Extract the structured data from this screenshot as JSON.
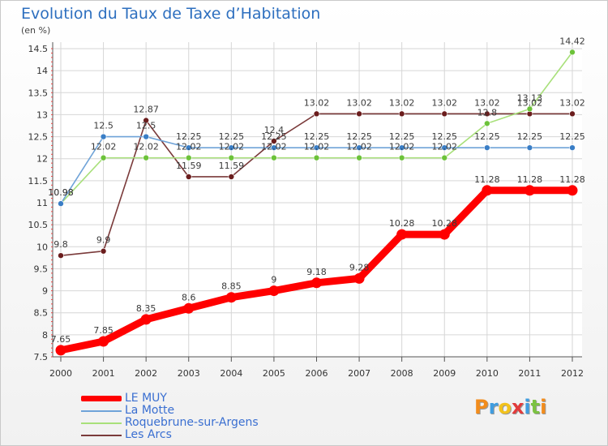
{
  "title": "Evolution du Taux de Taxe d’Habitation",
  "unit_label": "(en %)",
  "logo": {
    "text": [
      "P",
      "r",
      "o",
      "x",
      "i",
      "t",
      "i"
    ],
    "colors": [
      "#f28c1c",
      "#3f9de0",
      "#f2c21c",
      "#e23b3b",
      "#3f9de0",
      "#7cc242",
      "#f28c1c"
    ]
  },
  "chart_data": {
    "type": "line",
    "x": [
      2000,
      2001,
      2002,
      2003,
      2004,
      2005,
      2006,
      2007,
      2008,
      2009,
      2010,
      2011,
      2012
    ],
    "x_tick_labels": [
      "2000",
      "2001",
      "2002",
      "2003",
      "2004",
      "2005",
      "2006",
      "2007",
      "2008",
      "2009",
      "2010",
      "2011",
      "2012"
    ],
    "ylim": [
      7.5,
      14.5
    ],
    "y_ticks": [
      7.5,
      8,
      8.5,
      9,
      9.5,
      10,
      10.5,
      11,
      11.5,
      12,
      12.5,
      13,
      13.5,
      14,
      14.5
    ],
    "y_tick_labels": [
      "7.5",
      "8",
      "8.5",
      "9",
      "9.5",
      "10",
      "10.5",
      "11",
      "11.5",
      "12",
      "12.5",
      "13",
      "13.5",
      "14",
      "14.5"
    ],
    "grid": true,
    "legend_position": "bottom-left",
    "series": [
      {
        "name": "LE MUY",
        "color": "#ff0000",
        "marker": "#ff0000",
        "values": [
          7.65,
          7.85,
          8.35,
          8.6,
          8.85,
          9,
          9.18,
          9.28,
          10.28,
          10.28,
          11.28,
          11.28,
          11.28
        ],
        "labels": [
          "7.65",
          "7.85",
          "8.35",
          "8.6",
          "8.85",
          "9",
          "9.18",
          "9.28",
          "10.28",
          "10.28",
          "11.28",
          "11.28",
          "11.28"
        ]
      },
      {
        "name": "La Motte",
        "color": "#6fa3d8",
        "marker": "#3a7ec6",
        "values": [
          10.98,
          12.5,
          12.5,
          12.25,
          12.25,
          12.25,
          12.25,
          12.25,
          12.25,
          12.25,
          12.25,
          12.25,
          12.25
        ],
        "labels": [
          "10.98",
          "12.5",
          "12.5",
          "12.25",
          "12.25",
          "12.25",
          "12.25",
          "12.25",
          "12.25",
          "12.25",
          "12.25",
          "12.25",
          "12.25"
        ]
      },
      {
        "name": "Roquebrune-sur-Argens",
        "color": "#a8e07a",
        "marker": "#6cc23a",
        "values": [
          10.98,
          12.02,
          12.02,
          12.02,
          12.02,
          12.02,
          12.02,
          12.02,
          12.02,
          12.02,
          12.8,
          13.13,
          14.42
        ],
        "labels": [
          "10.98",
          "12.02",
          "12.02",
          "12.02",
          "12.02",
          "12.02",
          "12.02",
          "12.02",
          "12.02",
          "12.02",
          "12.8",
          "13.13",
          "14.42"
        ]
      },
      {
        "name": "Les Arcs",
        "color": "#7a3a3a",
        "marker": "#6b1d1d",
        "values": [
          9.8,
          9.9,
          12.87,
          11.59,
          11.59,
          12.4,
          13.02,
          13.02,
          13.02,
          13.02,
          13.02,
          13.02,
          13.02
        ],
        "labels": [
          "9.8",
          "9.9",
          "12.87",
          "11.59",
          "11.59",
          "12.4",
          "13.02",
          "13.02",
          "13.02",
          "13.02",
          "13.02",
          "13.02",
          "13.02"
        ]
      }
    ]
  }
}
